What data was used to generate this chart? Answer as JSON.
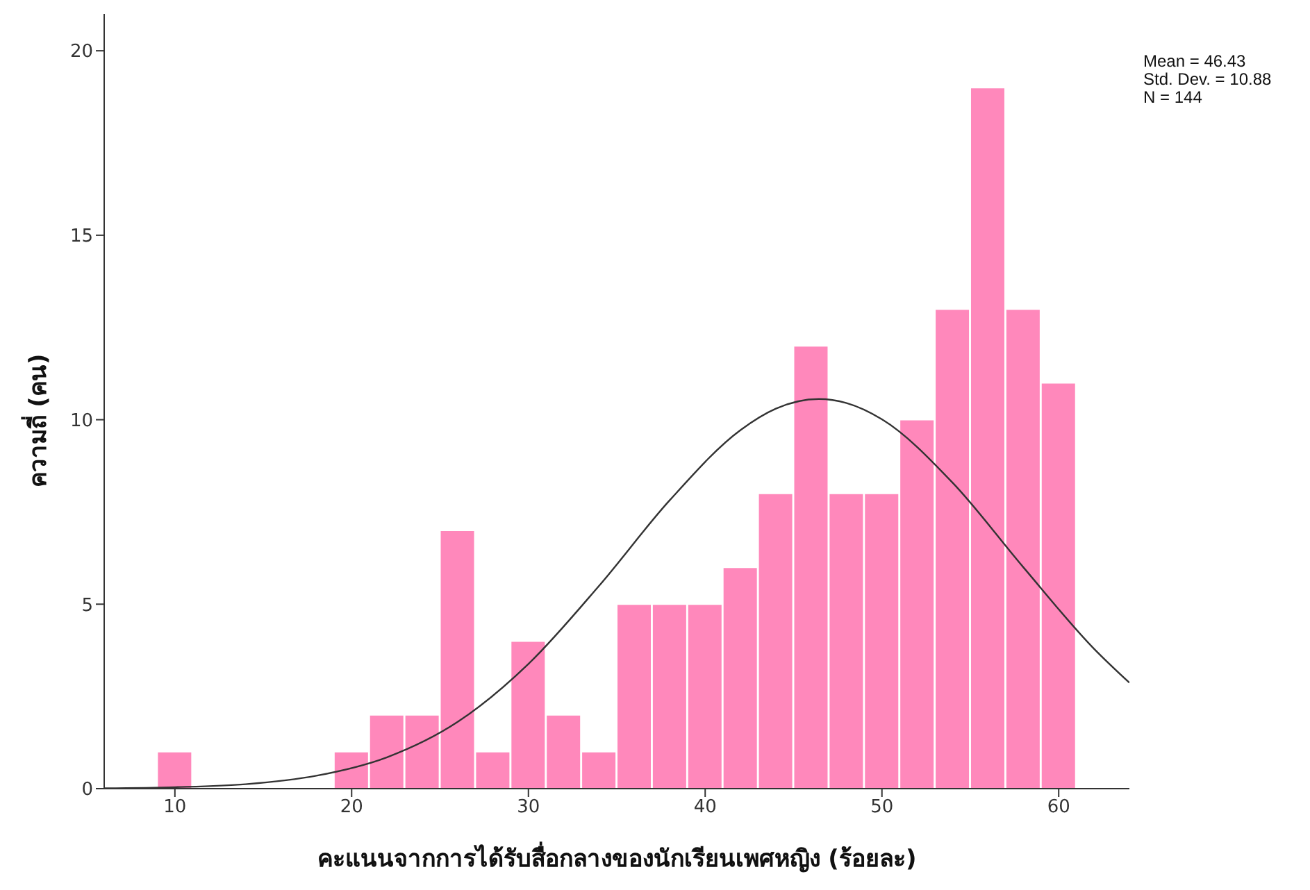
{
  "chart_data": {
    "type": "histogram",
    "xlabel": "คะแนนจากการได้รับสื่อกลางของนักเรียนเพศหญิง (ร้อยละ)",
    "ylabel": "ความถี่ (คน)",
    "bins": [
      9,
      11,
      13,
      15,
      17,
      19,
      21,
      23,
      25,
      27,
      29,
      31,
      33,
      35,
      37,
      39,
      41,
      43,
      45,
      47,
      49,
      51,
      53,
      55,
      57,
      59,
      61
    ],
    "values": [
      1,
      0,
      0,
      0,
      0,
      1,
      2,
      2,
      7,
      1,
      4,
      2,
      1,
      5,
      5,
      5,
      6,
      8,
      12,
      8,
      8,
      10,
      13,
      19,
      13,
      11
    ],
    "color": "#ff88bb",
    "series": [
      {
        "type": "line",
        "color": "#333333",
        "x": [
          6,
          10,
          14,
          18,
          22,
          26,
          30,
          34,
          38,
          42,
          44,
          46.43,
          48,
          50,
          54,
          58,
          62,
          64
        ],
        "values": [
          0.01,
          0.04,
          0.12,
          0.35,
          0.85,
          1.81,
          3.38,
          5.5,
          7.82,
          9.72,
          10.3,
          10.56,
          10.45,
          10.01,
          8.29,
          6.0,
          3.79,
          2.87
        ]
      }
    ],
    "xlim": [
      6,
      64
    ],
    "xticks": [
      10,
      20,
      30,
      40,
      50,
      60
    ],
    "ylim": [
      0,
      21
    ],
    "yticks": [
      0,
      5,
      10,
      15,
      20
    ],
    "annotations": [
      "Mean = 46.43",
      "Std. Dev. = 10.88",
      "N = 144"
    ]
  }
}
